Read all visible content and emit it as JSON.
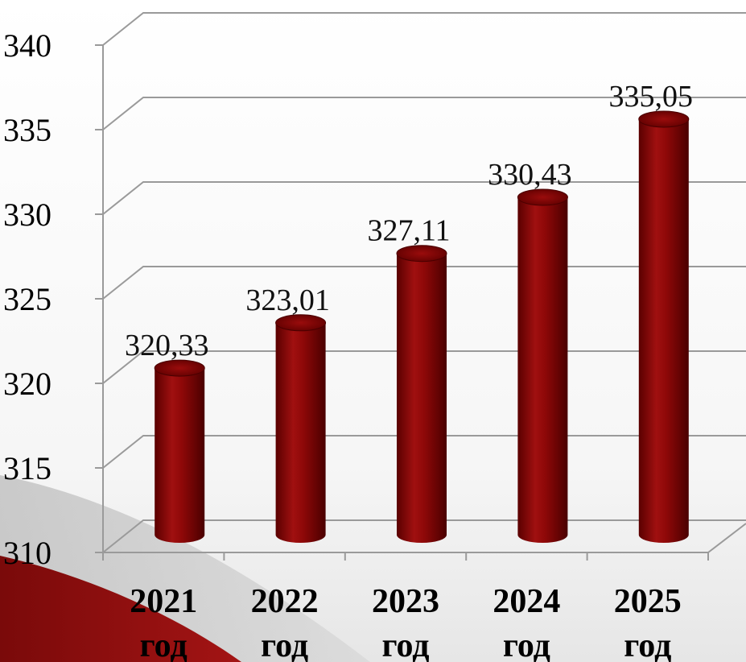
{
  "chart_data": {
    "type": "bar",
    "categories": [
      {
        "year": "2021",
        "unit": "год"
      },
      {
        "year": "2022",
        "unit": "год"
      },
      {
        "year": "2023",
        "unit": "год"
      },
      {
        "year": "2024",
        "unit": "год"
      },
      {
        "year": "2025",
        "unit": "год"
      }
    ],
    "values": [
      320.33,
      323.01,
      327.11,
      330.43,
      335.05
    ],
    "value_labels": [
      "320,33",
      "323,01",
      "327,11",
      "330,43",
      "335,05"
    ],
    "yticks": [
      "310",
      "315",
      "320",
      "325",
      "330",
      "335",
      "340"
    ],
    "ylim": [
      310,
      340
    ],
    "title": "",
    "xlabel": "",
    "ylabel": "",
    "grid": true,
    "legend": "none",
    "colors": {
      "bar": "#8b0000",
      "bar_dark": "#5a0000",
      "bar_light": "#c21818",
      "grid": "#9a9a9a",
      "background_accent": "#8b1010"
    }
  }
}
